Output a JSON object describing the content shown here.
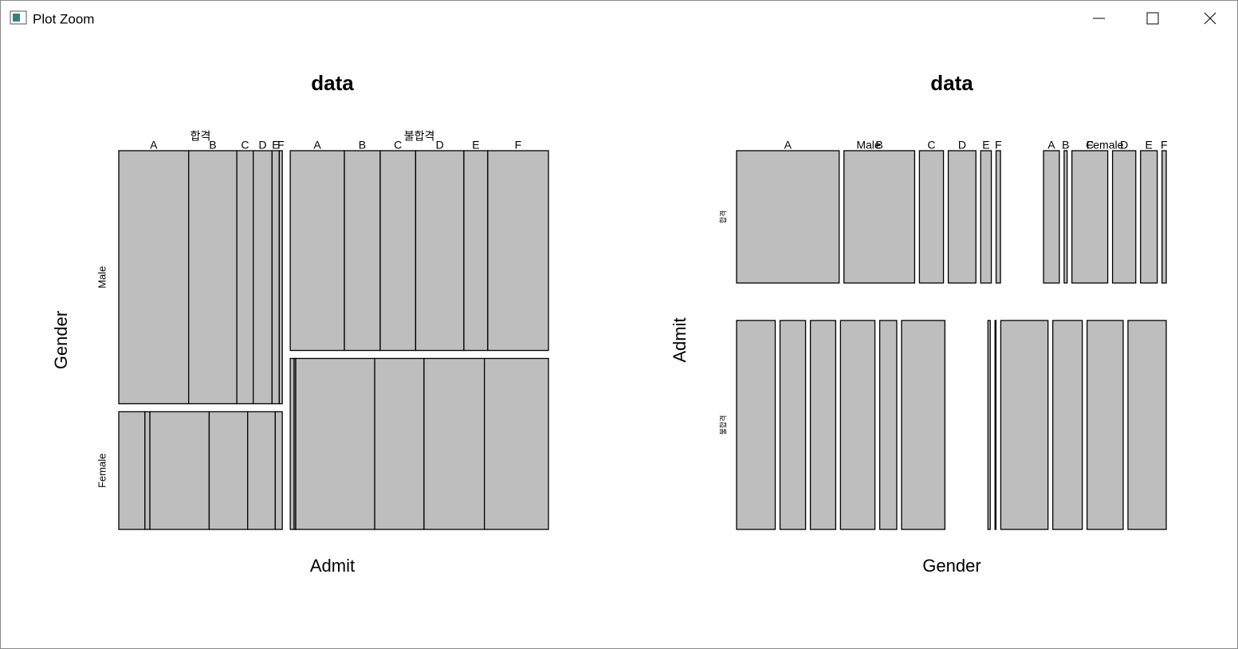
{
  "window": {
    "title": "Plot Zoom"
  },
  "chart_data": [
    {
      "type": "mosaic",
      "title": "data",
      "x_label": "Admit",
      "y_label": "Gender",
      "color": "#bebebe",
      "splits": [
        {
          "levels": [
            "합격",
            "불합격"
          ],
          "direction": "horizontal"
        },
        {
          "levels": [
            "Male",
            "Female"
          ],
          "direction": "vertical"
        },
        {
          "levels": [
            "A",
            "B",
            "C",
            "D",
            "E",
            "F"
          ],
          "direction": "horizontal"
        }
      ],
      "counts": [
        [
          [
            512,
            353,
            120,
            138,
            53,
            22
          ],
          [
            89,
            17,
            202,
            131,
            94,
            24
          ]
        ],
        [
          [
            313,
            207,
            205,
            279,
            138,
            351
          ],
          [
            19,
            8,
            391,
            244,
            299,
            317
          ]
        ]
      ]
    },
    {
      "type": "mosaic",
      "title": "data",
      "x_label": "Gender",
      "y_label": "Admit",
      "color": "#bebebe",
      "splits": [
        {
          "levels": [
            "합격",
            "불합격"
          ],
          "direction": "vertical"
        },
        {
          "levels": [
            "Male",
            "Female"
          ],
          "direction": "horizontal"
        },
        {
          "levels": [
            "A",
            "B",
            "C",
            "D",
            "E",
            "F"
          ],
          "direction": "horizontal"
        }
      ],
      "counts": [
        [
          [
            512,
            353,
            120,
            138,
            53,
            22
          ],
          [
            89,
            17,
            202,
            131,
            94,
            24
          ]
        ],
        [
          [
            313,
            207,
            205,
            279,
            138,
            351
          ],
          [
            19,
            8,
            391,
            244,
            299,
            317
          ]
        ]
      ]
    }
  ]
}
